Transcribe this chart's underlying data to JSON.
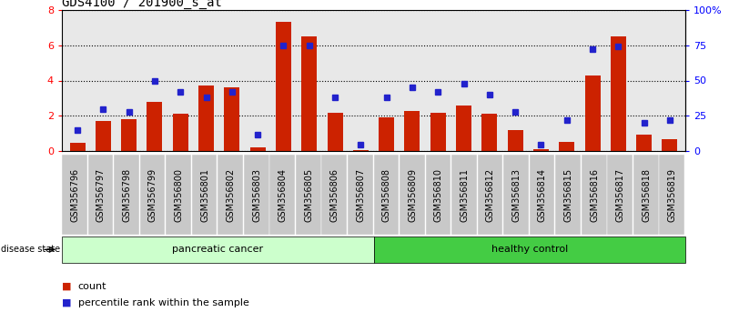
{
  "title": "GDS4100 / 201900_s_at",
  "samples": [
    "GSM356796",
    "GSM356797",
    "GSM356798",
    "GSM356799",
    "GSM356800",
    "GSM356801",
    "GSM356802",
    "GSM356803",
    "GSM356804",
    "GSM356805",
    "GSM356806",
    "GSM356807",
    "GSM356808",
    "GSM356809",
    "GSM356810",
    "GSM356811",
    "GSM356812",
    "GSM356813",
    "GSM356814",
    "GSM356815",
    "GSM356816",
    "GSM356817",
    "GSM356818",
    "GSM356819"
  ],
  "counts": [
    0.5,
    1.7,
    1.8,
    2.8,
    2.1,
    3.7,
    3.6,
    0.2,
    7.3,
    6.5,
    2.2,
    0.05,
    1.9,
    2.3,
    2.2,
    2.6,
    2.1,
    1.2,
    0.1,
    0.55,
    4.3,
    6.5,
    0.95,
    0.7
  ],
  "percentiles": [
    15,
    30,
    28,
    50,
    42,
    38,
    42,
    12,
    75,
    75,
    38,
    5,
    38,
    45,
    42,
    48,
    40,
    28,
    5,
    22,
    72,
    74,
    20,
    22
  ],
  "n_pancreatic": 12,
  "n_healthy": 12,
  "bar_color": "#cc2200",
  "dot_color": "#2222cc",
  "pancreatic_bg": "#ccffcc",
  "healthy_bg": "#44cc44",
  "ylim_left": [
    0,
    8
  ],
  "ylim_right": [
    0,
    100
  ],
  "yticks_left": [
    0,
    2,
    4,
    6,
    8
  ],
  "yticks_right": [
    0,
    25,
    50,
    75,
    100
  ],
  "ytick_labels_right": [
    "0",
    "25",
    "50",
    "75",
    "100%"
  ],
  "plot_bg": "#e8e8e8",
  "title_fontsize": 10,
  "tick_fontsize": 7,
  "label_fontsize": 8
}
